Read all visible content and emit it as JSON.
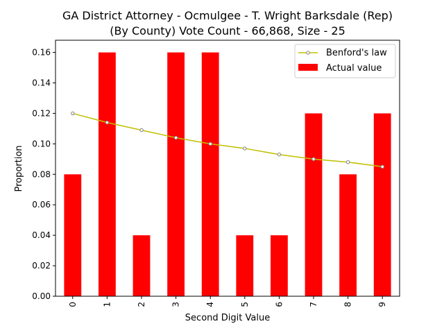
{
  "chart_data": {
    "type": "bar",
    "title_line1": "GA District Attorney - Ocmulgee - T. Wright Barksdale (Rep)",
    "title_line2": "(By County) Vote Count - 66,868, Size - 25",
    "xlabel": "Second Digit Value",
    "ylabel": "Proportion",
    "categories": [
      "0",
      "1",
      "2",
      "3",
      "4",
      "5",
      "6",
      "7",
      "8",
      "9"
    ],
    "ylim": [
      0,
      0.168
    ],
    "yticks": [
      "0.00",
      "0.02",
      "0.04",
      "0.06",
      "0.08",
      "0.10",
      "0.12",
      "0.14",
      "0.16"
    ],
    "grid": false,
    "legend_position": "top-right",
    "series": [
      {
        "name": "Actual value",
        "kind": "bar",
        "color": "#ff0000",
        "values": [
          0.08,
          0.16,
          0.04,
          0.16,
          0.16,
          0.04,
          0.04,
          0.12,
          0.08,
          0.12
        ]
      },
      {
        "name": "Benford's law",
        "kind": "line",
        "color": "#bfbf00",
        "marker_edge_color": "#808080",
        "values": [
          0.12,
          0.114,
          0.109,
          0.104,
          0.1,
          0.097,
          0.093,
          0.09,
          0.088,
          0.085
        ]
      }
    ]
  }
}
